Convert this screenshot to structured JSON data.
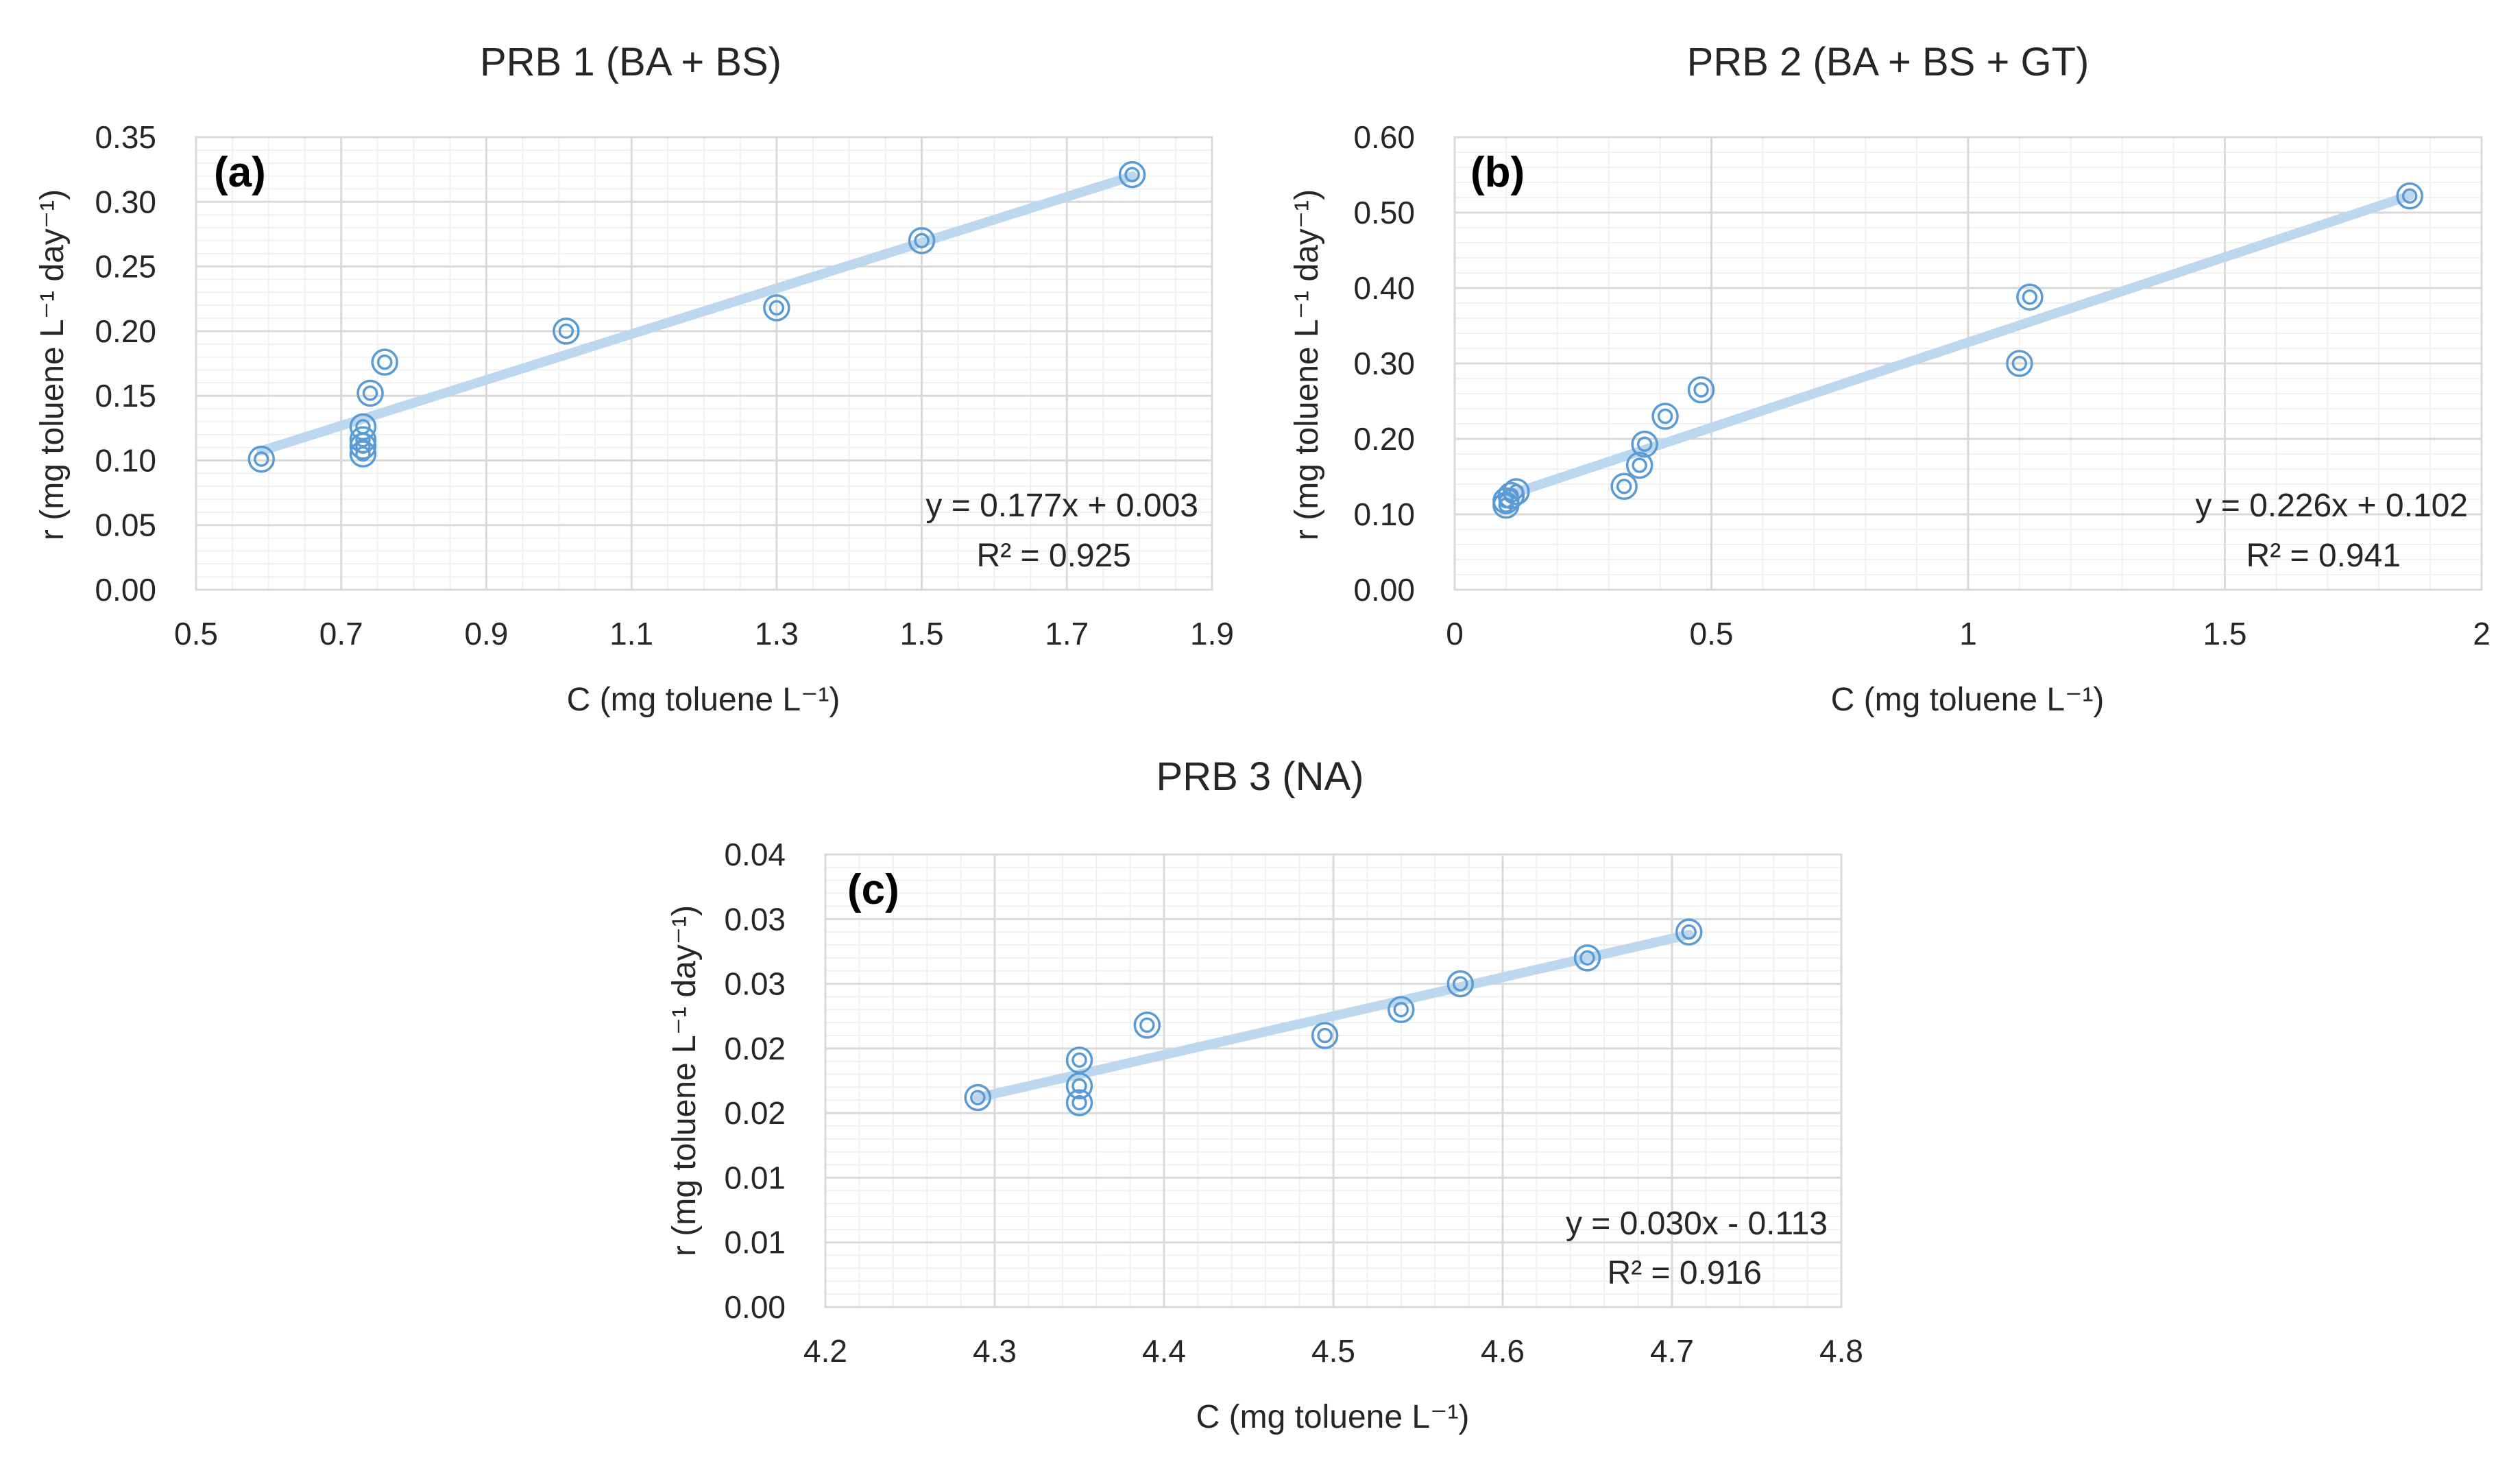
{
  "chart_data": [
    {
      "type": "scatter",
      "title": "PRB 1 (BA + BS)",
      "panel_label": "(a)",
      "xlabel": "C (mg toluene L⁻¹)",
      "ylabel": "r (mg toluene L⁻¹ day⁻¹)",
      "xlim": [
        0.5,
        1.9
      ],
      "ylim": [
        0,
        0.35
      ],
      "xticks": [
        0.5,
        0.7,
        0.9,
        1.1,
        1.3,
        1.5,
        1.7,
        1.9
      ],
      "yticks": [
        0,
        0.05,
        0.1,
        0.15,
        0.2,
        0.25,
        0.3,
        0.35
      ],
      "xtick_labels": [
        "0.5",
        "0.7",
        "0.9",
        "1.1",
        "1.3",
        "1.5",
        "1.7",
        "1.9"
      ],
      "ytick_labels": [
        "0.00",
        "0.05",
        "0.10",
        "0.15",
        "0.20",
        "0.25",
        "0.30",
        "0.35"
      ],
      "x_minor_step": 0.05,
      "y_minor_step": 0.01,
      "grid": true,
      "points": [
        {
          "x": 0.59,
          "y": 0.101
        },
        {
          "x": 0.73,
          "y": 0.105
        },
        {
          "x": 0.73,
          "y": 0.111
        },
        {
          "x": 0.73,
          "y": 0.116
        },
        {
          "x": 0.73,
          "y": 0.126
        },
        {
          "x": 0.74,
          "y": 0.152
        },
        {
          "x": 0.76,
          "y": 0.176
        },
        {
          "x": 1.01,
          "y": 0.2
        },
        {
          "x": 1.3,
          "y": 0.218
        },
        {
          "x": 1.5,
          "y": 0.27
        },
        {
          "x": 1.79,
          "y": 0.321
        }
      ],
      "trendline": {
        "slope": 0.177,
        "intercept": 0.003,
        "x_start": 0.59,
        "x_end": 1.79
      },
      "equation": "y = 0.177x + 0.003",
      "r_squared": "R² = 0.925"
    },
    {
      "type": "scatter",
      "title": "PRB 2 (BA + BS + GT)",
      "panel_label": "(b)",
      "xlabel": "C (mg toluene L⁻¹)",
      "ylabel": "r (mg toluene L⁻¹ day⁻¹)",
      "xlim": [
        0,
        2
      ],
      "ylim": [
        0,
        0.6
      ],
      "xticks": [
        0,
        0.5,
        1,
        1.5,
        2
      ],
      "yticks": [
        0,
        0.1,
        0.2,
        0.3,
        0.4,
        0.5,
        0.6
      ],
      "xtick_labels": [
        "0",
        "0.5",
        "1",
        "1.5",
        "2"
      ],
      "ytick_labels": [
        "0.00",
        "0.10",
        "0.20",
        "0.30",
        "0.40",
        "0.50",
        "0.60"
      ],
      "x_minor_step": 0.1,
      "y_minor_step": 0.02,
      "grid": true,
      "points": [
        {
          "x": 0.1,
          "y": 0.112
        },
        {
          "x": 0.1,
          "y": 0.118
        },
        {
          "x": 0.11,
          "y": 0.125
        },
        {
          "x": 0.12,
          "y": 0.13
        },
        {
          "x": 0.33,
          "y": 0.137
        },
        {
          "x": 0.36,
          "y": 0.165
        },
        {
          "x": 0.37,
          "y": 0.193
        },
        {
          "x": 0.41,
          "y": 0.23
        },
        {
          "x": 0.48,
          "y": 0.265
        },
        {
          "x": 1.1,
          "y": 0.3
        },
        {
          "x": 1.12,
          "y": 0.388
        },
        {
          "x": 1.86,
          "y": 0.522
        }
      ],
      "trendline": {
        "slope": 0.226,
        "intercept": 0.102,
        "x_start": 0.1,
        "x_end": 1.86
      },
      "equation": "y = 0.226x + 0.102",
      "r_squared": "R² = 0.941"
    },
    {
      "type": "scatter",
      "title": "PRB 3 (NA)",
      "panel_label": "(c)",
      "xlabel": "C (mg toluene L⁻¹)",
      "ylabel": "r (mg toluene L⁻¹ day⁻¹)",
      "xlim": [
        4.2,
        4.8
      ],
      "ylim": [
        0,
        0.035
      ],
      "xticks": [
        4.2,
        4.3,
        4.4,
        4.5,
        4.6,
        4.7,
        4.8
      ],
      "yticks": [
        0,
        0.005,
        0.01,
        0.015,
        0.02,
        0.025,
        0.03,
        0.035
      ],
      "xtick_labels": [
        "4.2",
        "4.3",
        "4.4",
        "4.5",
        "4.6",
        "4.7",
        "4.8"
      ],
      "ytick_labels": [
        "0.00",
        "0.01",
        "0.01",
        "0.02",
        "0.02",
        "0.03",
        "0.03",
        "0.04"
      ],
      "x_minor_step": 0.02,
      "y_minor_step": 0.001,
      "grid": true,
      "points": [
        {
          "x": 4.29,
          "y": 0.0162
        },
        {
          "x": 4.35,
          "y": 0.0158
        },
        {
          "x": 4.35,
          "y": 0.0171
        },
        {
          "x": 4.35,
          "y": 0.0191
        },
        {
          "x": 4.39,
          "y": 0.0218
        },
        {
          "x": 4.495,
          "y": 0.021
        },
        {
          "x": 4.54,
          "y": 0.023
        },
        {
          "x": 4.575,
          "y": 0.025
        },
        {
          "x": 4.65,
          "y": 0.027
        },
        {
          "x": 4.71,
          "y": 0.029
        }
      ],
      "trendline": {
        "slope": 0.03,
        "intercept": -0.113,
        "x_start": 4.29,
        "x_end": 4.71,
        "y_start": 0.0162,
        "y_end": 0.0288
      },
      "equation": "y = 0.030x - 0.113",
      "r_squared": "R² = 0.916"
    }
  ]
}
